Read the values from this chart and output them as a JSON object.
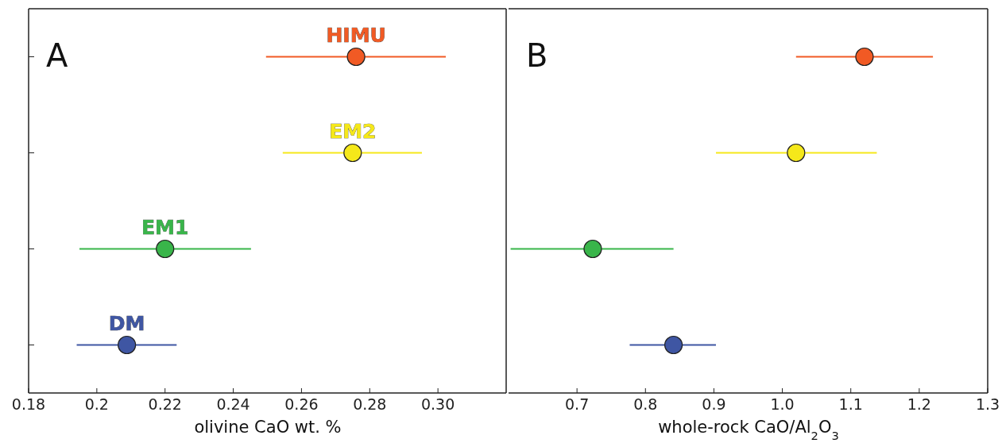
{
  "chart_data": [
    {
      "type": "scatter",
      "orientation": "horizontal",
      "annotations": [
        "A"
      ],
      "xlabel": "olivine CaO wt. %",
      "categories": [
        null,
        null,
        null,
        null
      ],
      "xlim": [
        0.18,
        0.32
      ],
      "xticks": [
        0.18,
        {
          "value": 0.2,
          "label": "0.2"
        },
        0.22,
        0.24,
        0.26,
        0.28,
        {
          "value": 0.3,
          "label": "0.30"
        }
      ],
      "tick_labels": "x",
      "marker": "circle",
      "series": [
        {
          "name": "HIMU",
          "color": "#f15a24",
          "values": [
            0.276,
            null,
            null,
            null
          ],
          "errors": [
            [
              0.2496,
              0.3023
            ],
            null,
            null,
            null
          ]
        },
        {
          "name": "EM2",
          "color": "#f5e81a",
          "values": [
            null,
            0.275,
            null,
            null
          ],
          "errors": [
            null,
            [
              0.2545,
              0.2953
            ],
            null,
            null
          ]
        },
        {
          "name": "EM1",
          "color": "#39b54a",
          "values": [
            null,
            null,
            0.22,
            null
          ],
          "errors": [
            null,
            null,
            [
              0.1949,
              0.2452
            ],
            null
          ]
        },
        {
          "name": "DM",
          "color": "#3f56a3",
          "values": [
            null,
            null,
            null,
            0.2088
          ],
          "errors": [
            null,
            null,
            null,
            [
              0.1941,
              0.2234
            ]
          ]
        }
      ]
    },
    {
      "type": "scatter",
      "orientation": "horizontal",
      "annotations": [
        "B"
      ],
      "xlabel": "whole-rock CaO/Al$_{2}$O$_{3}$",
      "categories": [
        null,
        null,
        null,
        null
      ],
      "xlim": [
        0.6,
        1.3
      ],
      "xticks": [
        0.7,
        0.8,
        0.9,
        {
          "value": 1,
          "label": "1.0"
        },
        1.1,
        1.2,
        1.3
      ],
      "tick_labels": "x",
      "marker": "circle",
      "series": [
        {
          "color": "#f15a24",
          "values": [
            1.12,
            null,
            null,
            null
          ],
          "errors": [
            [
              1.02,
              1.22
            ],
            null,
            null,
            null
          ]
        },
        {
          "color": "#f5e81a",
          "values": [
            null,
            1.02,
            null,
            null
          ],
          "errors": [
            null,
            [
              0.903,
              1.138
            ],
            null,
            null
          ]
        },
        {
          "color": "#39b54a",
          "values": [
            null,
            null,
            0.723,
            null
          ],
          "errors": [
            null,
            null,
            [
              0.603,
              0.841
            ],
            null
          ]
        },
        {
          "color": "#3f56a3",
          "values": [
            null,
            null,
            null,
            0.841
          ],
          "errors": [
            null,
            null,
            null,
            [
              0.777,
              0.903
            ]
          ]
        }
      ]
    }
  ]
}
